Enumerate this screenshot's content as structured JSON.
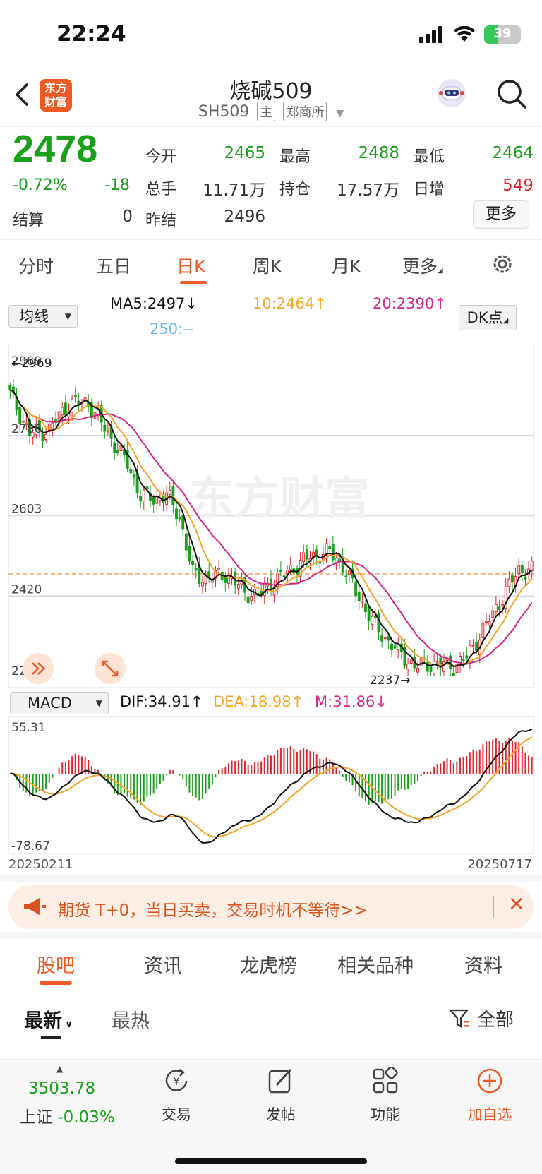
{
  "status": {
    "time": "22:24",
    "battery": "39",
    "battery_level": 0.39
  },
  "header": {
    "title": "烧碱509",
    "code": "SH509",
    "tag_main": "主",
    "tag_exchange": "郑商所",
    "logo_line1": "东方",
    "logo_line2": "财富"
  },
  "quote": {
    "price": "2478",
    "change_pct": "-0.72%",
    "change": "-18",
    "settle_label": "结算",
    "settle": "0",
    "prev_settle_label": "昨结",
    "prev_settle": "2496",
    "open_label": "今开",
    "open": "2465",
    "high_label": "最高",
    "high": "2488",
    "low_label": "最低",
    "low": "2464",
    "volume_label": "总手",
    "volume": "11.71万",
    "oi_label": "持仓",
    "oi": "17.57万",
    "daily_inc_label": "日增",
    "daily_inc": "549",
    "more": "更多"
  },
  "period_tabs": [
    "分时",
    "五日",
    "日K",
    "周K",
    "月K",
    "更多"
  ],
  "indicator": {
    "select": "均线",
    "ma5": "MA5:2497↓",
    "ma10": "10:2464↑",
    "ma20": "20:2390↑",
    "ma250": "250:--",
    "dk": "DK点"
  },
  "kline": {
    "y_ticks": [
      "2969",
      "2786",
      "2603",
      "2420",
      "2237"
    ],
    "max_marker": "←2969",
    "min_marker": "2237→",
    "watermark": "东方财富"
  },
  "macd": {
    "select": "MACD",
    "dif": "DIF:34.91↑",
    "dea": "DEA:18.98↑",
    "m": "M:31.86↓",
    "top": "55.31",
    "bottom": "-78.67",
    "date_start": "20250211",
    "date_end": "20250717"
  },
  "promo": {
    "text": "期货 T+0，当日买卖，交易时机不等待>>",
    "close": "✕"
  },
  "bottom_tabs": [
    "股吧",
    "资讯",
    "龙虎榜",
    "相关品种",
    "资料"
  ],
  "sort": {
    "latest": "最新",
    "hot": "最热",
    "filter": "全部"
  },
  "nav": {
    "index_value": "3503.78",
    "index_name": "上证",
    "index_change": "-0.03%",
    "items": [
      "交易",
      "发帖",
      "功能",
      "加自选"
    ]
  },
  "colors": {
    "up": "#e3262b",
    "down": "#1ba01b",
    "accent": "#ee5a24",
    "ma5": "#111111",
    "ma10": "#f5a623",
    "ma20": "#d6248b",
    "ma250": "#6ab7ec"
  }
}
